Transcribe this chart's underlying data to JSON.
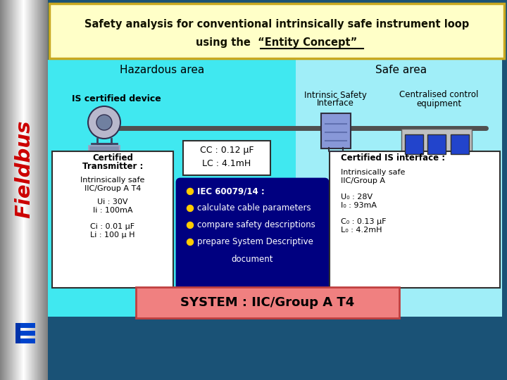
{
  "title_line1": "Safety analysis for conventional intrinsically safe instrument loop",
  "title_line2": "using the  “Entity Concept”",
  "fieldbus_text": "Fieldbus",
  "bg_outer": "#1a5276",
  "bg_main": "#40e8f0",
  "bg_safe": "#a0eef8",
  "title_bg": "#ffffc8",
  "title_border": "#c8a820",
  "hazardous_label": "Hazardous area",
  "safe_label": "Safe area",
  "is_device_label": "IS certified device",
  "intrinsic_label1": "Intrinsic Safety",
  "intrinsic_label2": "Interface",
  "centralised_label1": "Centralised control",
  "centralised_label2": "equipment",
  "cert_trans_title1": "Certified",
  "cert_trans_title2": "Transmitter :",
  "cert_trans_l3": "Intrinsically safe",
  "cert_trans_l4": "IIC/Group A T4",
  "cert_trans_l5": "Ui : 30V",
  "cert_trans_l6": "Ii : 100mA",
  "cert_trans_l7": "Ci : 0.01 μF",
  "cert_trans_l8": "Li : 100 μ H",
  "cable_line1": "CC : 0.12 μF",
  "cable_line2": "LC : 4.1mH",
  "bullet_items": [
    "IEC 60079/14 :",
    "calculate cable parameters",
    "compare safety descriptions",
    "prepare System Descriptive",
    "document"
  ],
  "cert_is_title": "Certified IS interface :",
  "cert_is_l2": "Intrinsically safe",
  "cert_is_l3": "IIC/Group A",
  "cert_is_l4": "U₀ : 28V",
  "cert_is_l5": "I₀ : 93mA",
  "cert_is_l6": "C₀ : 0.13 μF",
  "cert_is_l7": "L₀ : 4.2mH",
  "system_label": "SYSTEM : IIC/Group A T4",
  "system_bg": "#f08080",
  "fieldbus_color": "#cc0000",
  "logo_color": "#0033cc",
  "bullet_bg": "#000080",
  "wire_color": "#505050",
  "box_border": "#303030"
}
